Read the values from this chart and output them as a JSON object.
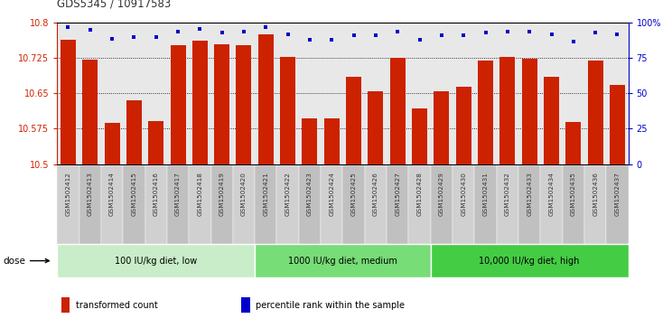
{
  "title": "GDS5345 / 10917583",
  "samples": [
    "GSM1502412",
    "GSM1502413",
    "GSM1502414",
    "GSM1502415",
    "GSM1502416",
    "GSM1502417",
    "GSM1502418",
    "GSM1502419",
    "GSM1502420",
    "GSM1502421",
    "GSM1502422",
    "GSM1502423",
    "GSM1502424",
    "GSM1502425",
    "GSM1502426",
    "GSM1502427",
    "GSM1502428",
    "GSM1502429",
    "GSM1502430",
    "GSM1502431",
    "GSM1502432",
    "GSM1502433",
    "GSM1502434",
    "GSM1502435",
    "GSM1502436",
    "GSM1502437"
  ],
  "bar_values": [
    10.765,
    10.722,
    10.588,
    10.636,
    10.592,
    10.752,
    10.762,
    10.755,
    10.752,
    10.775,
    10.728,
    10.598,
    10.598,
    10.685,
    10.655,
    10.725,
    10.618,
    10.654,
    10.665,
    10.72,
    10.727,
    10.723,
    10.686,
    10.59,
    10.72,
    10.668
  ],
  "percentile_values": [
    97,
    95,
    89,
    90,
    90,
    94,
    96,
    93,
    94,
    97,
    92,
    88,
    88,
    91,
    91,
    94,
    88,
    91,
    91,
    93,
    94,
    94,
    92,
    87,
    93,
    92
  ],
  "bar_color": "#cc2200",
  "dot_color": "#0000cc",
  "ylim_left": [
    10.5,
    10.8
  ],
  "yticks_left": [
    10.5,
    10.575,
    10.65,
    10.725,
    10.8
  ],
  "ytick_labels_left": [
    "10.5",
    "10.575",
    "10.65",
    "10.725",
    "10.8"
  ],
  "yticks_right": [
    0,
    25,
    50,
    75,
    100
  ],
  "ytick_labels_right": [
    "0",
    "25",
    "50",
    "75",
    "100%"
  ],
  "groups": [
    {
      "label": "100 IU/kg diet, low",
      "start": 0,
      "end": 9,
      "color": "#c8edc8"
    },
    {
      "label": "1000 IU/kg diet, medium",
      "start": 9,
      "end": 17,
      "color": "#77dd77"
    },
    {
      "label": "10,000 IU/kg diet, high",
      "start": 17,
      "end": 26,
      "color": "#44cc44"
    }
  ],
  "dose_label": "dose",
  "legend_items": [
    {
      "color": "#cc2200",
      "label": "transformed count"
    },
    {
      "color": "#0000cc",
      "label": "percentile rank within the sample"
    }
  ],
  "plot_bg": "#e8e8e8",
  "xtick_bg_odd": "#d0d0d0",
  "xtick_bg_even": "#c0c0c0",
  "fig_bg": "#ffffff"
}
